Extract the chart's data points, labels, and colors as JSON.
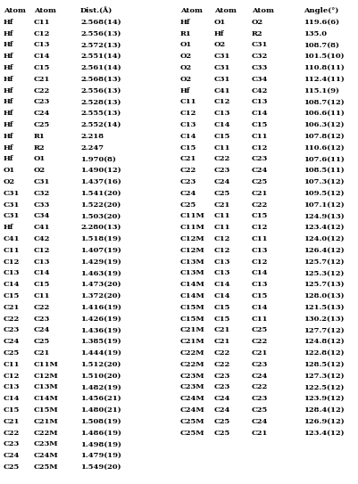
{
  "bg_color": "#ffffff",
  "left_columns": [
    "Atom",
    "Atom",
    "Dist.(Å)"
  ],
  "right_columns": [
    "Atom",
    "Atom",
    "Atom",
    "Angle(°)"
  ],
  "left_rows": [
    [
      "Hf",
      "C11",
      "2.568(14)"
    ],
    [
      "Hf",
      "C12",
      "2.556(13)"
    ],
    [
      "Hf",
      "C13",
      "2.572(13)"
    ],
    [
      "Hf",
      "C14",
      "2.551(14)"
    ],
    [
      "Hf",
      "C15",
      "2.561(14)"
    ],
    [
      "Hf",
      "C21",
      "2.568(13)"
    ],
    [
      "Hf",
      "C22",
      "2.556(13)"
    ],
    [
      "Hf",
      "C23",
      "2.528(13)"
    ],
    [
      "Hf",
      "C24",
      "2.555(13)"
    ],
    [
      "Hf",
      "C25",
      "2.552(14)"
    ],
    [
      "Hf",
      "R1",
      "2.218"
    ],
    [
      "Hf",
      "R2",
      "2.247"
    ],
    [
      "Hf",
      "O1",
      "1.970(8)"
    ],
    [
      "O1",
      "O2",
      "1.490(12)"
    ],
    [
      "O2",
      "C31",
      "1.437(16)"
    ],
    [
      "C31",
      "C32",
      "1.541(20)"
    ],
    [
      "C31",
      "C33",
      "1.522(20)"
    ],
    [
      "C31",
      "C34",
      "1.503(20)"
    ],
    [
      "Hf",
      "C41",
      "2.280(13)"
    ],
    [
      "C41",
      "C42",
      "1.518(19)"
    ],
    [
      "C11",
      "C12",
      "1.407(19)"
    ],
    [
      "C12",
      "C13",
      "1.429(19)"
    ],
    [
      "C13",
      "C14",
      "1.463(19)"
    ],
    [
      "C14",
      "C15",
      "1.473(20)"
    ],
    [
      "C15",
      "C11",
      "1.372(20)"
    ],
    [
      "C21",
      "C22",
      "1.416(19)"
    ],
    [
      "C22",
      "C23",
      "1.426(19)"
    ],
    [
      "C23",
      "C24",
      "1.436(19)"
    ],
    [
      "C24",
      "C25",
      "1.385(19)"
    ],
    [
      "C25",
      "C21",
      "1.444(19)"
    ],
    [
      "C11",
      "C11M",
      "1.512(20)"
    ],
    [
      "C12",
      "C12M",
      "1.510(20)"
    ],
    [
      "C13",
      "C13M",
      "1.482(19)"
    ],
    [
      "C14",
      "C14M",
      "1.456(21)"
    ],
    [
      "C15",
      "C15M",
      "1.480(21)"
    ],
    [
      "C21",
      "C21M",
      "1.508(19)"
    ],
    [
      "C22",
      "C22M",
      "1.486(19)"
    ],
    [
      "C23",
      "C23M",
      "1.498(19)"
    ],
    [
      "C24",
      "C24M",
      "1.479(19)"
    ],
    [
      "C25",
      "C25M",
      "1.549(20)"
    ]
  ],
  "right_rows": [
    [
      "Hf",
      "O1",
      "O2",
      "119.6(6)"
    ],
    [
      "R1",
      "Hf",
      "R2",
      "135.0"
    ],
    [
      "O1",
      "O2",
      "C31",
      "108.7(8)"
    ],
    [
      "O2",
      "C31",
      "C32",
      "101.5(10)"
    ],
    [
      "O2",
      "C31",
      "C33",
      "110.8(11)"
    ],
    [
      "O2",
      "C31",
      "C34",
      "112.4(11)"
    ],
    [
      "Hf",
      "C41",
      "C42",
      "115.1(9)"
    ],
    [
      "C11",
      "C12",
      "C13",
      "108.7(12)"
    ],
    [
      "C12",
      "C13",
      "C14",
      "106.6(11)"
    ],
    [
      "C13",
      "C14",
      "C15",
      "106.3(12)"
    ],
    [
      "C14",
      "C15",
      "C11",
      "107.8(12)"
    ],
    [
      "C15",
      "C11",
      "C12",
      "110.6(12)"
    ],
    [
      "C21",
      "C22",
      "C23",
      "107.6(11)"
    ],
    [
      "C22",
      "C23",
      "C24",
      "108.5(11)"
    ],
    [
      "C23",
      "C24",
      "C25",
      "107.3(12)"
    ],
    [
      "C24",
      "C25",
      "C21",
      "109.5(12)"
    ],
    [
      "C25",
      "C21",
      "C22",
      "107.1(12)"
    ],
    [
      "C11M",
      "C11",
      "C15",
      "124.9(13)"
    ],
    [
      "C11M",
      "C11",
      "C12",
      "123.4(12)"
    ],
    [
      "C12M",
      "C12",
      "C11",
      "124.0(12)"
    ],
    [
      "C12M",
      "C12",
      "C13",
      "126.4(12)"
    ],
    [
      "C13M",
      "C13",
      "C12",
      "125.7(12)"
    ],
    [
      "C13M",
      "C13",
      "C14",
      "125.3(12)"
    ],
    [
      "C14M",
      "C14",
      "C13",
      "125.7(13)"
    ],
    [
      "C14M",
      "C14",
      "C15",
      "128.0(13)"
    ],
    [
      "C15M",
      "C15",
      "C14",
      "121.5(13)"
    ],
    [
      "C15M",
      "C15",
      "C11",
      "130.2(13)"
    ],
    [
      "C21M",
      "C21",
      "C25",
      "127.7(12)"
    ],
    [
      "C21M",
      "C21",
      "C22",
      "124.8(12)"
    ],
    [
      "C22M",
      "C22",
      "C21",
      "122.8(12)"
    ],
    [
      "C22M",
      "C22",
      "C23",
      "128.5(12)"
    ],
    [
      "C23M",
      "C23",
      "C24",
      "127.3(12)"
    ],
    [
      "C23M",
      "C23",
      "C22",
      "122.5(12)"
    ],
    [
      "C24M",
      "C24",
      "C23",
      "123.9(12)"
    ],
    [
      "C24M",
      "C24",
      "C25",
      "128.4(12)"
    ],
    [
      "C25M",
      "C25",
      "C24",
      "126.9(12)"
    ],
    [
      "C25M",
      "C25",
      "C21",
      "123.4(12)"
    ]
  ]
}
